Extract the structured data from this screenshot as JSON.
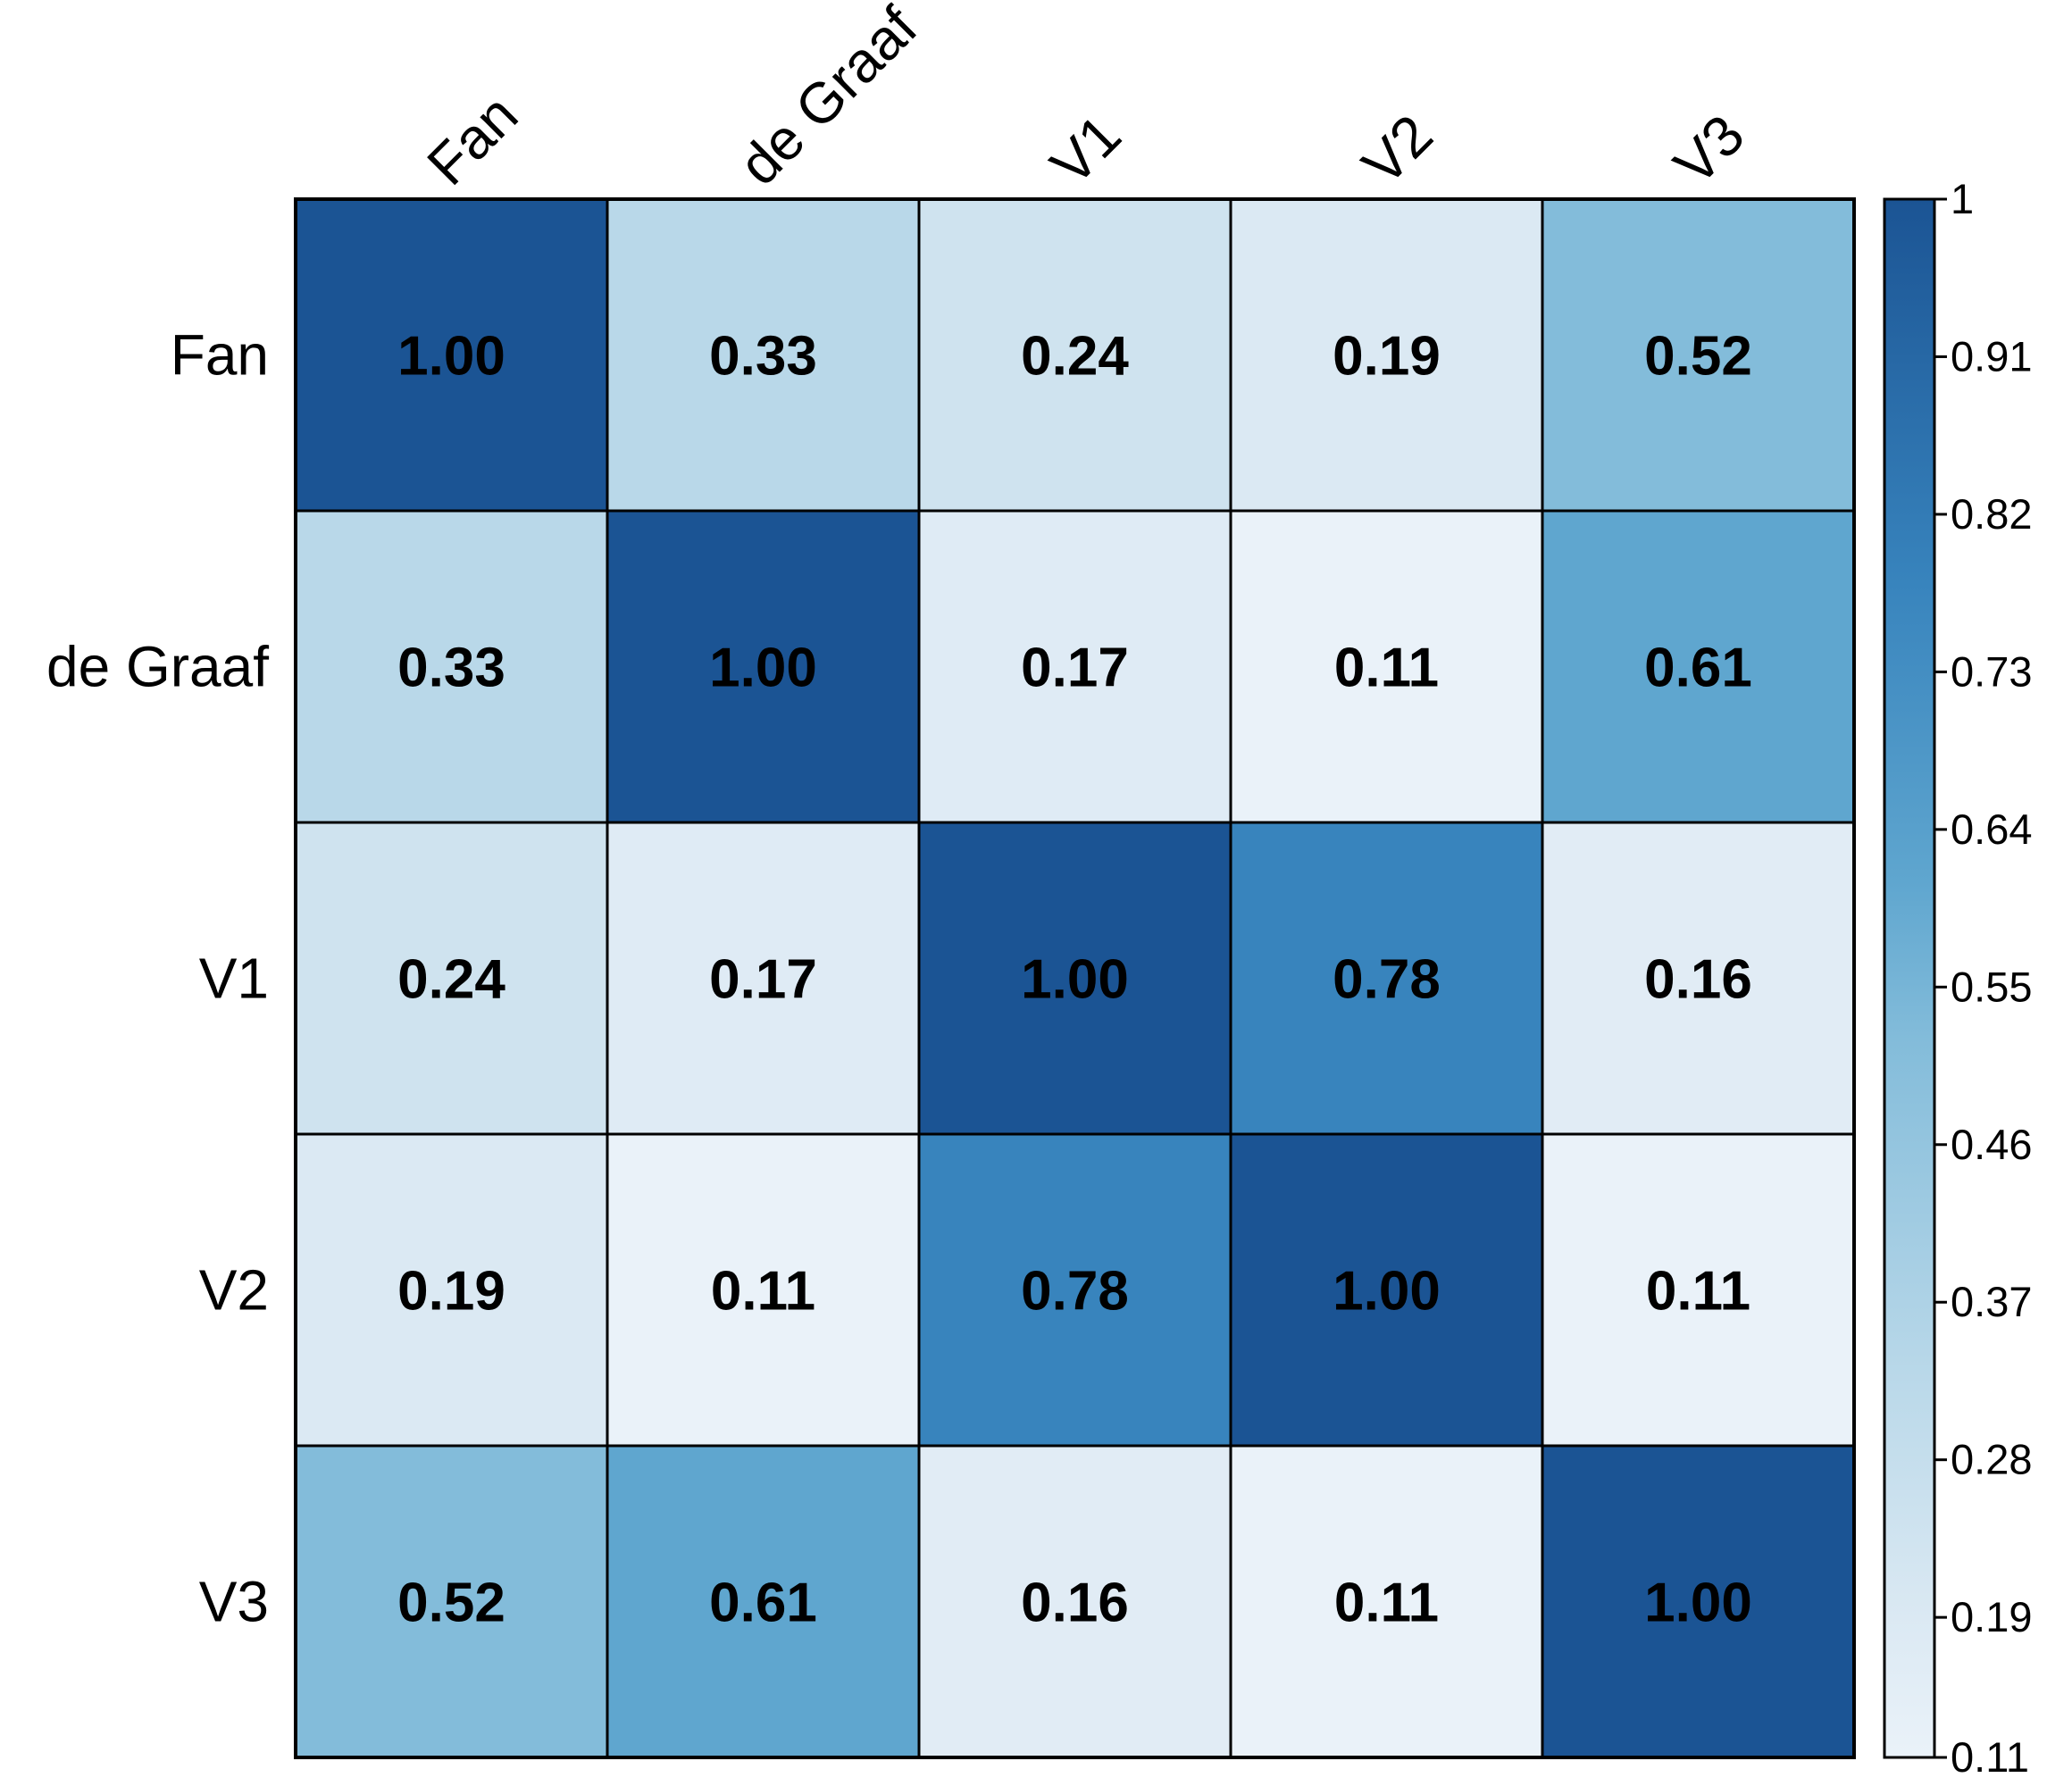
{
  "chart_data": {
    "type": "heatmap",
    "title": "",
    "row_labels": [
      "Fan",
      "de Graaf",
      "V1",
      "V2",
      "V3"
    ],
    "col_labels": [
      "Fan",
      "de Graaf",
      "V1",
      "V2",
      "V3"
    ],
    "values": [
      [
        1.0,
        0.33,
        0.24,
        0.19,
        0.52
      ],
      [
        0.33,
        1.0,
        0.17,
        0.11,
        0.61
      ],
      [
        0.24,
        0.17,
        1.0,
        0.78,
        0.16
      ],
      [
        0.19,
        0.11,
        0.78,
        1.0,
        0.11
      ],
      [
        0.52,
        0.61,
        0.16,
        0.11,
        1.0
      ]
    ],
    "value_labels": [
      [
        "1.00",
        "0.33",
        "0.24",
        "0.19",
        "0.52"
      ],
      [
        "0.33",
        "1.00",
        "0.17",
        "0.11",
        "0.61"
      ],
      [
        "0.24",
        "0.17",
        "1.00",
        "0.78",
        "0.16"
      ],
      [
        "0.19",
        "0.11",
        "0.78",
        "1.00",
        "0.11"
      ],
      [
        "0.52",
        "0.61",
        "0.16",
        "0.11",
        "1.00"
      ]
    ],
    "color_scale": {
      "name": "Blues",
      "min": 0.11,
      "max": 1,
      "low_color": "#eaf2f9",
      "high_color": "#1b5494",
      "stops": [
        {
          "value": 0.11,
          "color": "#eaf2f9"
        },
        {
          "value": 0.19,
          "color": "#dbe9f3"
        },
        {
          "value": 0.33,
          "color": "#b9d8e9"
        },
        {
          "value": 0.52,
          "color": "#83bcda"
        },
        {
          "value": 0.61,
          "color": "#5fa6cf"
        },
        {
          "value": 0.78,
          "color": "#3884bd"
        },
        {
          "value": 1.0,
          "color": "#1b5494"
        }
      ]
    },
    "legend": {
      "position": "right",
      "ticks": [
        "1",
        "0.91",
        "0.82",
        "0.73",
        "0.64",
        "0.55",
        "0.46",
        "0.37",
        "0.28",
        "0.19",
        "0.11"
      ],
      "tick_values": [
        1,
        0.91,
        0.82,
        0.73,
        0.64,
        0.55,
        0.46,
        0.37,
        0.28,
        0.19,
        0.11
      ]
    }
  }
}
